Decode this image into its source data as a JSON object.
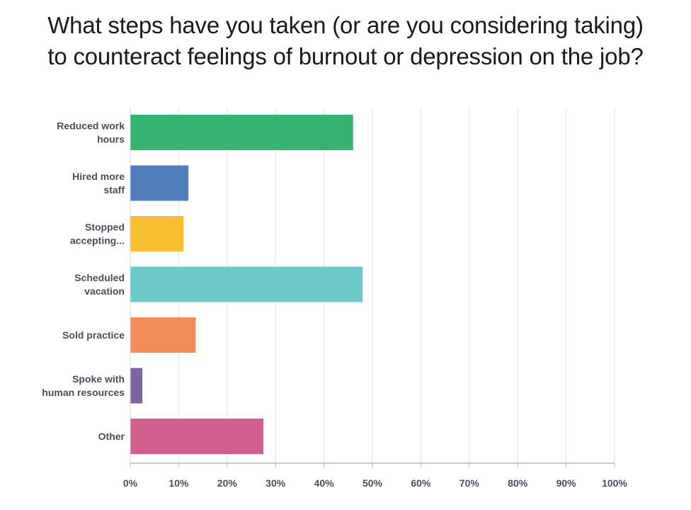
{
  "chart_data": {
    "type": "bar",
    "orientation": "horizontal",
    "title_lines": [
      "What steps have you taken (or are you considering taking)",
      "to counteract feelings of burnout or depression on the job?"
    ],
    "categories": [
      [
        "Reduced work",
        "hours"
      ],
      [
        "Hired more",
        "staff"
      ],
      [
        "Stopped",
        "accepting..."
      ],
      [
        "Scheduled",
        "vacation"
      ],
      [
        "Sold practice"
      ],
      [
        "Spoke with",
        "human resources"
      ],
      [
        "Other"
      ]
    ],
    "values": [
      46,
      12,
      11,
      48,
      13.5,
      2.5,
      27.5
    ],
    "colors": [
      "#35b36f",
      "#4f7dba",
      "#f8bf33",
      "#6ec9cb",
      "#f48b5b",
      "#7c64a4",
      "#d2608e"
    ],
    "x_ticks": [
      "0%",
      "10%",
      "20%",
      "30%",
      "40%",
      "50%",
      "60%",
      "70%",
      "80%",
      "90%",
      "100%"
    ],
    "xlim": [
      0,
      100
    ],
    "grid": true,
    "legend": "none"
  }
}
